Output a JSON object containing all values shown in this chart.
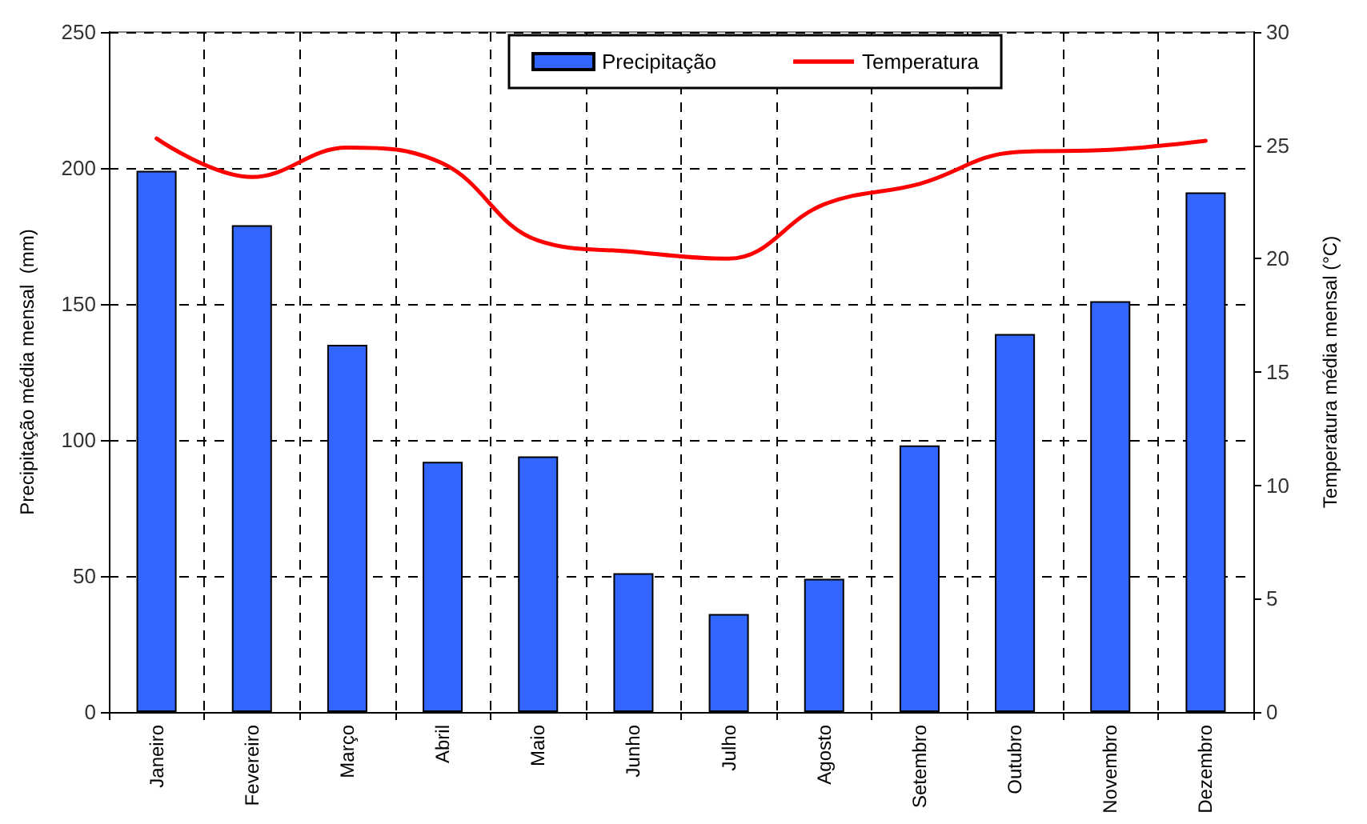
{
  "chart_data": {
    "type": "bar",
    "categories": [
      "Janeiro",
      "Fevereiro",
      "Março",
      "Abril",
      "Maio",
      "Junho",
      "Julho",
      "Agosto",
      "Setembro",
      "Outubro",
      "Novembro",
      "Dezembro"
    ],
    "series": [
      {
        "name": "Precipitação",
        "color": "#3366ff",
        "values": [
          199,
          179,
          135,
          92,
          94,
          51,
          36,
          49,
          98,
          139,
          151,
          191
        ]
      },
      {
        "name": "Temperatura",
        "type": "line",
        "axis": "y2",
        "color": "#ff0000",
        "values": [
          25.3,
          23.6,
          24.9,
          24.2,
          20.8,
          20.3,
          20.0,
          22.4,
          23.3,
          24.7,
          24.8,
          25.2
        ]
      }
    ],
    "ylabel": "Precipitação média mensal  (mm)",
    "y2label": "Temperatura média mensal (°C)",
    "ylim": [
      0,
      250
    ],
    "yticks": [
      0,
      50,
      100,
      150,
      200,
      250
    ],
    "y2lim": [
      0,
      30
    ],
    "y2ticks": [
      0,
      5,
      10,
      15,
      20,
      25,
      30
    ],
    "grid": true,
    "legend": "top",
    "marker": "none",
    "line_style": "solid"
  }
}
